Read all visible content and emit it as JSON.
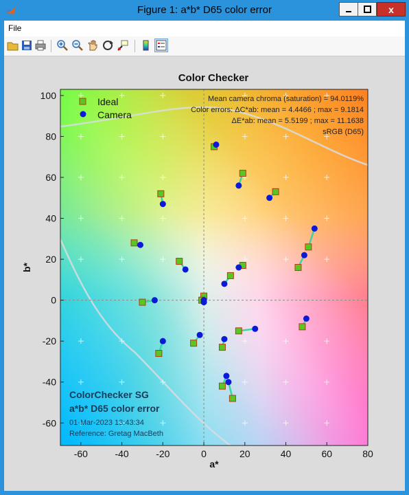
{
  "window": {
    "title": "Figure 1: a*b* D65 color error",
    "close_label": "x"
  },
  "menu": {
    "file_label": "File"
  },
  "toolbar": {
    "icons": [
      "open-folder-icon",
      "save-icon",
      "print-icon",
      "zoom-in-icon",
      "zoom-out-icon",
      "pan-hand-icon",
      "rotate-icon",
      "data-cursor-icon",
      "colorbar-icon",
      "legend-icon"
    ]
  },
  "chart_data": {
    "type": "scatter",
    "title": "Color Checker",
    "xlabel": "a*",
    "ylabel": "b*",
    "xlim": [
      -70,
      80
    ],
    "ylim": [
      -71,
      103
    ],
    "xticks": [
      -60,
      -40,
      -20,
      0,
      20,
      40,
      60,
      80
    ],
    "yticks": [
      -60,
      -40,
      -20,
      0,
      20,
      40,
      60,
      80,
      100
    ],
    "legend": {
      "position": "top-left",
      "entries": [
        "Ideal",
        "Camera"
      ]
    },
    "annotations_top_right": [
      "Mean camera chroma (saturation) = 94.0119%",
      "Color errors:  ΔC*ab:  mean = 4.4466 ;  max = 9.1814",
      "ΔE*ab:  mean = 5.5199 ;  max = 11.1638",
      "sRGB (D65)"
    ],
    "annotations_bottom_left": {
      "line1": "ColorChecker SG",
      "line2": "a*b* D65 color error",
      "date": "01-Mar-2023 13:43:34",
      "reference": "Reference: Gretag MacBeth"
    },
    "colors": {
      "ideal_fill": "#5cc423",
      "ideal_edge": "#b04010",
      "camera_fill": "#0a1ad8",
      "connector": "#3ad5a0"
    },
    "pairs": [
      {
        "ideal": [
          5,
          75
        ],
        "camera": [
          6,
          76
        ]
      },
      {
        "ideal": [
          19,
          62
        ],
        "camera": [
          17,
          56
        ]
      },
      {
        "ideal": [
          35,
          53
        ],
        "camera": [
          32,
          50
        ]
      },
      {
        "ideal": [
          -21,
          52
        ],
        "camera": [
          -20,
          47
        ]
      },
      {
        "ideal": [
          51,
          26
        ],
        "camera": [
          54,
          35
        ]
      },
      {
        "ideal": [
          -34,
          28
        ],
        "camera": [
          -31,
          27
        ]
      },
      {
        "ideal": [
          46,
          16
        ],
        "camera": [
          49,
          22
        ]
      },
      {
        "ideal": [
          -12,
          19
        ],
        "camera": [
          -9,
          15
        ]
      },
      {
        "ideal": [
          19,
          17
        ],
        "camera": [
          17,
          16
        ]
      },
      {
        "ideal": [
          13,
          12
        ],
        "camera": [
          10,
          8
        ]
      },
      {
        "ideal": [
          -30,
          -1
        ],
        "camera": [
          -24,
          0
        ]
      },
      {
        "ideal": [
          0,
          2
        ],
        "camera": [
          0,
          0
        ]
      },
      {
        "ideal": [
          -1,
          0
        ],
        "camera": [
          0,
          -1
        ]
      },
      {
        "ideal": [
          48,
          -13
        ],
        "camera": [
          50,
          -9
        ]
      },
      {
        "ideal": [
          17,
          -15
        ],
        "camera": [
          25,
          -14
        ]
      },
      {
        "ideal": [
          -5,
          -21
        ],
        "camera": [
          -2,
          -17
        ]
      },
      {
        "ideal": [
          9,
          -23
        ],
        "camera": [
          10,
          -19
        ]
      },
      {
        "ideal": [
          -22,
          -26
        ],
        "camera": [
          -20,
          -20
        ]
      },
      {
        "ideal": [
          9,
          -42
        ],
        "camera": [
          11,
          -37
        ]
      },
      {
        "ideal": [
          14,
          -48
        ],
        "camera": [
          12,
          -40
        ]
      }
    ]
  }
}
